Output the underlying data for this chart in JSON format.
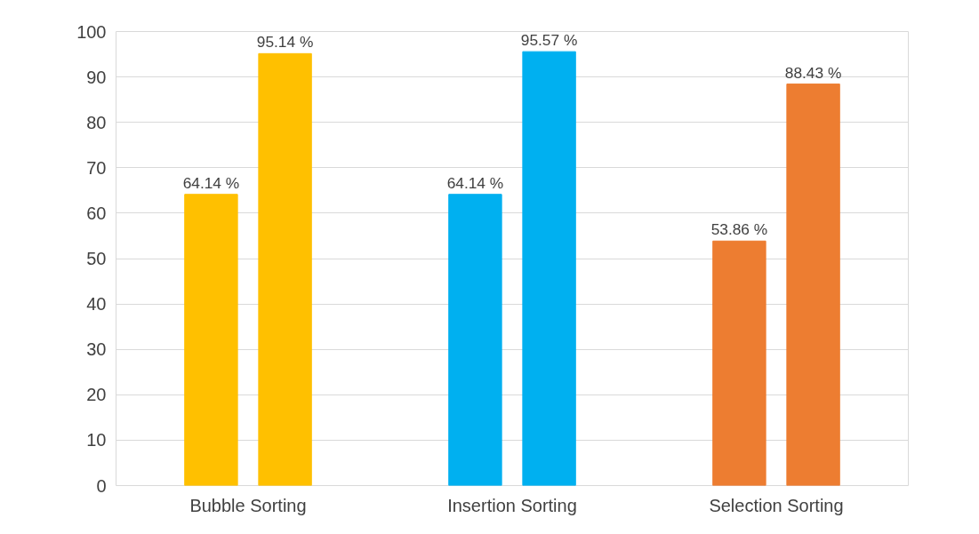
{
  "chart_data": {
    "type": "bar",
    "categories": [
      "Bubble Sorting",
      "Insertion Sorting",
      "Selection Sorting"
    ],
    "series": [
      {
        "colors": [
          "#ffc000",
          "#00b0f0",
          "#ed7d31"
        ],
        "values": [
          64.14,
          64.14,
          53.86
        ],
        "value_labels": [
          "64.14 %",
          "64.14 %",
          "53.86 %"
        ]
      },
      {
        "colors": [
          "#ffc000",
          "#00b0f0",
          "#ed7d31"
        ],
        "values": [
          95.14,
          95.57,
          88.43
        ],
        "value_labels": [
          "95.14 %",
          "95.57 %",
          "88.43 %"
        ]
      }
    ],
    "ylim": [
      0,
      100
    ],
    "yticks": [
      0,
      10,
      20,
      30,
      40,
      50,
      60,
      70,
      80,
      90,
      100
    ],
    "grid": "y"
  }
}
